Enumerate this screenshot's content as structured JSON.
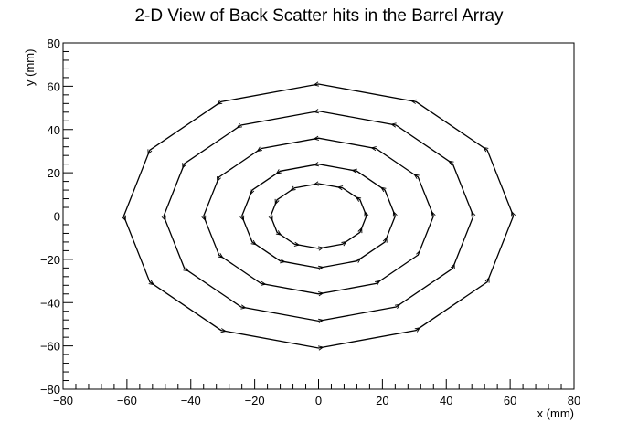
{
  "chart_data": {
    "type": "scatter",
    "title": "2-D View of Back Scatter hits in the Barrel Array",
    "xlabel": "x (mm)",
    "ylabel": "y (mm)",
    "xlim": [
      -80,
      80
    ],
    "ylim": [
      -80,
      80
    ],
    "x_ticks": [
      -80,
      -60,
      -40,
      -20,
      0,
      20,
      40,
      60,
      80
    ],
    "y_ticks": [
      -80,
      -60,
      -40,
      -20,
      0,
      20,
      40,
      60,
      80
    ],
    "x_tick_labels": [
      "−80",
      "−60",
      "−40",
      "−20",
      "0",
      "20",
      "40",
      "60",
      "80"
    ],
    "y_tick_labels": [
      "−80",
      "−60",
      "−40",
      "−20",
      "0",
      "20",
      "40",
      "60",
      "80"
    ],
    "grid": false,
    "legend": "none",
    "series": [
      {
        "shape": "polygon",
        "sides": 12,
        "x_radius": 61,
        "y_radius": 61,
        "hits_marked": "vertices"
      },
      {
        "shape": "polygon",
        "sides": 12,
        "x_radius": 48.5,
        "y_radius": 48.5,
        "hits_marked": "vertices"
      },
      {
        "shape": "polygon",
        "sides": 12,
        "x_radius": 36,
        "y_radius": 36,
        "hits_marked": "vertices"
      },
      {
        "shape": "polygon",
        "sides": 12,
        "x_radius": 24,
        "y_radius": 24,
        "hits_marked": "vertices"
      },
      {
        "shape": "polygon",
        "sides": 12,
        "x_radius": 15,
        "y_radius": 15,
        "hits_marked": "vertices"
      }
    ]
  }
}
